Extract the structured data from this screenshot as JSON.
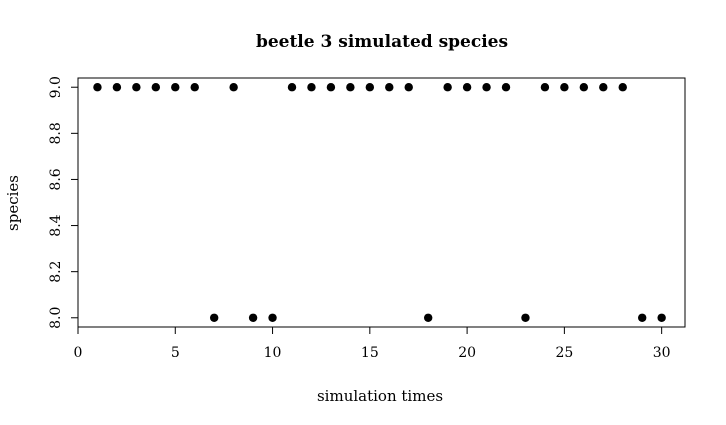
{
  "chart_data": {
    "type": "scatter",
    "title": "beetle 3 simulated species",
    "xlabel": "simulation times",
    "ylabel": "species",
    "xlim": [
      0,
      31.2
    ],
    "ylim": [
      7.96,
      9.04
    ],
    "x_ticks": [
      "0",
      "5",
      "10",
      "15",
      "20",
      "25",
      "30"
    ],
    "y_ticks": [
      "8.0",
      "8.2",
      "8.4",
      "8.6",
      "8.8",
      "9.0"
    ],
    "grid": false,
    "point_color": "#000000",
    "series": [
      {
        "x": [
          1,
          2,
          3,
          4,
          5,
          6,
          7,
          8,
          9,
          10,
          11,
          12,
          13,
          14,
          15,
          16,
          17,
          18,
          19,
          20,
          21,
          22,
          23,
          24,
          25,
          26,
          27,
          28,
          29,
          30
        ],
        "y": [
          9,
          9,
          9,
          9,
          9,
          9,
          8,
          9,
          8,
          8,
          9,
          9,
          9,
          9,
          9,
          9,
          9,
          8,
          9,
          9,
          9,
          9,
          8,
          9,
          9,
          9,
          9,
          9,
          8,
          8
        ]
      }
    ]
  }
}
